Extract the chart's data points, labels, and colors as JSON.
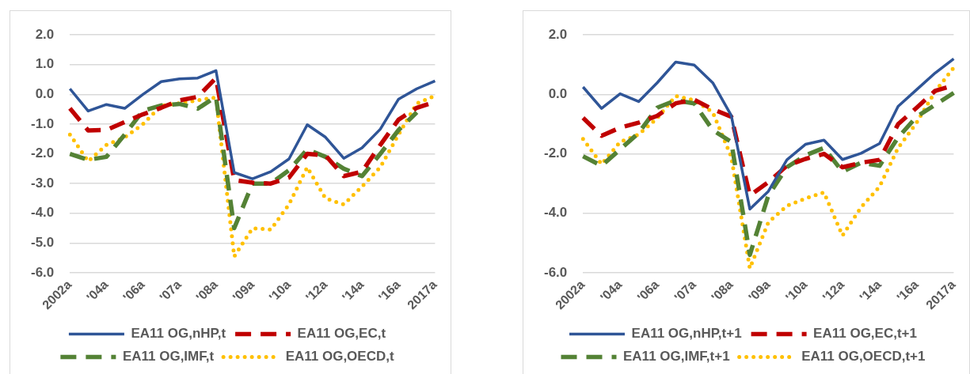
{
  "chart_data": [
    {
      "type": "line",
      "categories": [
        "2002a",
        null,
        "'04a",
        null,
        "'06a",
        null,
        "'07a",
        null,
        "'08a",
        null,
        "'09a",
        null,
        "'10a",
        null,
        "'12a",
        null,
        "'14a",
        null,
        "'16a",
        null,
        "2017a"
      ],
      "ylim": [
        -6,
        2
      ],
      "yticks": [
        {
          "value": -6,
          "label": "-6.0"
        },
        {
          "value": -5,
          "label": "-5.0"
        },
        {
          "value": -4,
          "label": "-4.0"
        },
        {
          "value": -3,
          "label": "-3.0"
        },
        {
          "value": -2,
          "label": "-2.0"
        },
        {
          "value": -1,
          "label": "-1.0"
        },
        {
          "value": 0,
          "label": "0.0"
        },
        {
          "value": 1,
          "label": "1.0"
        },
        {
          "value": 2,
          "label": "2.0"
        }
      ],
      "grid": "y",
      "legend": "bottom",
      "marker": "none",
      "series": [
        {
          "name": "EA11 OG,nHP,t",
          "color": "#2f5597",
          "line_style": "solid",
          "values": [
            0.19,
            -0.56,
            -0.34,
            -0.47,
            0.0,
            0.43,
            0.52,
            0.55,
            0.8,
            -2.63,
            -2.84,
            -2.6,
            -2.17,
            -1.02,
            -1.44,
            -2.15,
            -1.8,
            -1.17,
            -0.16,
            0.19,
            0.45
          ]
        },
        {
          "name": "EA11 OG,EC,t",
          "color": "#c00000",
          "line_style": "dashed",
          "values": [
            -0.47,
            -1.21,
            -1.2,
            -0.93,
            -0.67,
            -0.45,
            -0.2,
            -0.08,
            0.55,
            -2.88,
            -2.97,
            -3.0,
            -2.8,
            -2.0,
            -2.05,
            -2.75,
            -2.6,
            -1.7,
            -0.85,
            -0.45,
            -0.25
          ]
        },
        {
          "name": "EA11 OG,IMF,t",
          "color": "#548235",
          "line_style": "dashed",
          "values": [
            -2.0,
            -2.2,
            -2.1,
            -1.35,
            -0.55,
            -0.37,
            -0.32,
            -0.48,
            -0.08,
            -4.5,
            -3.0,
            -3.0,
            -2.55,
            -1.85,
            -2.1,
            -2.5,
            -2.75,
            -2.0,
            -1.2,
            -0.6,
            null
          ]
        },
        {
          "name": "EA11 OG,OECD,t",
          "color": "#ffc000",
          "line_style": "dotted",
          "values": [
            -1.35,
            -2.25,
            -1.7,
            -1.45,
            -1.0,
            -0.38,
            -0.3,
            -0.2,
            -0.1,
            -5.45,
            -4.5,
            -4.55,
            -3.7,
            -2.45,
            -3.5,
            -3.7,
            -3.1,
            -2.45,
            -1.35,
            -0.3,
            -0.05
          ]
        }
      ]
    },
    {
      "type": "line",
      "categories": [
        "2002a",
        null,
        "'04a",
        null,
        "'06a",
        null,
        "'07a",
        null,
        "'08a",
        null,
        "'09a",
        null,
        "'10a",
        null,
        "'12a",
        null,
        "'14a",
        null,
        "'16a",
        null,
        "2017a"
      ],
      "ylim": [
        -6,
        2
      ],
      "yticks": [
        {
          "value": -6,
          "label": "-6.0"
        },
        {
          "value": -4,
          "label": "-4.0"
        },
        {
          "value": -2,
          "label": "-2.0"
        },
        {
          "value": 0,
          "label": "0.0"
        },
        {
          "value": 2,
          "label": "2.0"
        }
      ],
      "grid": "y",
      "legend": "bottom",
      "marker": "none",
      "series": [
        {
          "name": "EA11 OG,nHP,t+1",
          "color": "#2f5597",
          "line_style": "solid",
          "values": [
            0.25,
            -0.47,
            0.02,
            -0.24,
            0.39,
            1.09,
            0.99,
            0.39,
            -0.71,
            -3.86,
            -3.26,
            -2.2,
            -1.68,
            -1.54,
            -2.19,
            -1.98,
            -1.65,
            -0.4,
            0.16,
            0.72,
            1.2
          ]
        },
        {
          "name": "EA11 OG,EC,t+1",
          "color": "#c00000",
          "line_style": "dashed",
          "values": [
            -0.79,
            -1.39,
            -1.12,
            -0.95,
            -0.72,
            -0.3,
            -0.18,
            -0.5,
            -0.75,
            -3.4,
            -2.95,
            -2.4,
            -2.17,
            -2.0,
            -2.45,
            -2.3,
            -2.2,
            -1.0,
            -0.45,
            0.12,
            0.3
          ]
        },
        {
          "name": "EA11 OG,IMF,t+1",
          "color": "#548235",
          "line_style": "dashed",
          "values": [
            -2.08,
            -2.4,
            -1.85,
            -1.3,
            -0.45,
            -0.2,
            -0.3,
            -1.2,
            -1.6,
            -5.4,
            -3.4,
            -2.45,
            -2.05,
            -1.8,
            -2.6,
            -2.3,
            -2.4,
            -1.45,
            -0.75,
            -0.35,
            0.05
          ]
        },
        {
          "name": "EA11 OG,OECD,t+1",
          "color": "#ffc000",
          "line_style": "dotted",
          "values": [
            -1.5,
            -2.35,
            -1.6,
            -1.35,
            -0.8,
            -0.05,
            -0.2,
            -0.6,
            -2.1,
            -5.85,
            -4.3,
            -3.75,
            -3.5,
            -3.3,
            -4.75,
            -3.8,
            -3.1,
            -1.8,
            -0.95,
            0.1,
            0.9
          ]
        }
      ]
    }
  ]
}
